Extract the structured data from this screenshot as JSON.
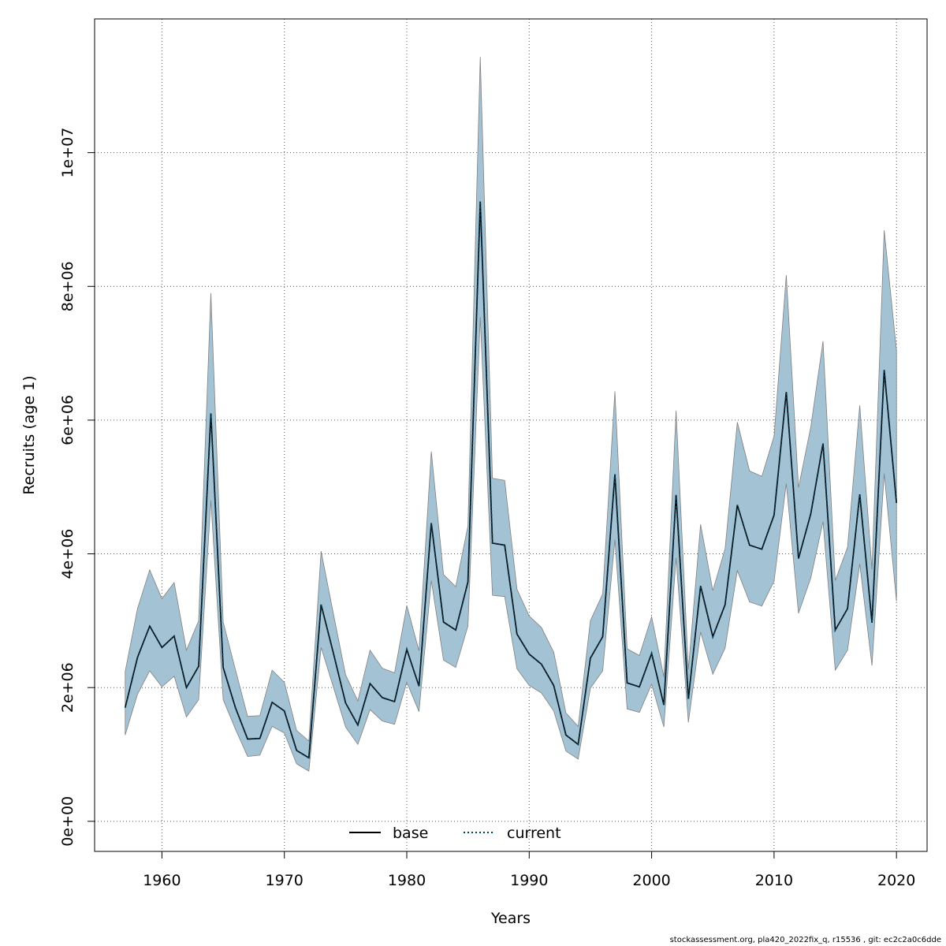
{
  "chart_data": {
    "type": "line",
    "title": "",
    "xlabel": "Years",
    "ylabel": "Recruits (age 1)",
    "xlim": [
      1954.5,
      2022.5
    ],
    "ylim": [
      -450000,
      12000000
    ],
    "x_ticks": [
      1960,
      1970,
      1980,
      1990,
      2000,
      2010,
      2020
    ],
    "x_tick_labels": [
      "1960",
      "1970",
      "1980",
      "1990",
      "2000",
      "2010",
      "2020"
    ],
    "y_ticks": [
      0,
      2000000,
      4000000,
      6000000,
      8000000,
      10000000
    ],
    "y_tick_labels": [
      "0e+00",
      "2e+06",
      "4e+06",
      "6e+06",
      "8e+06",
      "1e+07"
    ],
    "grid": true,
    "legend_position": "bottom",
    "legend": [
      {
        "label": "base",
        "style": "solid",
        "color": "#000000"
      },
      {
        "label": "current",
        "style": "dotted",
        "color": "#00405a"
      }
    ],
    "x": [
      1957,
      1958,
      1959,
      1960,
      1961,
      1962,
      1963,
      1964,
      1965,
      1966,
      1967,
      1968,
      1969,
      1970,
      1971,
      1972,
      1973,
      1974,
      1975,
      1976,
      1977,
      1978,
      1979,
      1980,
      1981,
      1982,
      1983,
      1984,
      1985,
      1986,
      1987,
      1988,
      1989,
      1990,
      1991,
      1992,
      1993,
      1994,
      1995,
      1996,
      1997,
      1998,
      1999,
      2000,
      2001,
      2002,
      2003,
      2004,
      2005,
      2006,
      2007,
      2008,
      2009,
      2010,
      2011,
      2012,
      2013,
      2014,
      2015,
      2016,
      2017,
      2018,
      2019,
      2020
    ],
    "series": [
      {
        "name": "base",
        "values": [
          1700000,
          2450000,
          2920000,
          2600000,
          2770000,
          2000000,
          2320000,
          6100000,
          2300000,
          1700000,
          1230000,
          1240000,
          1780000,
          1650000,
          1060000,
          950000,
          3240000,
          2520000,
          1770000,
          1440000,
          2060000,
          1850000,
          1790000,
          2570000,
          2020000,
          4460000,
          2980000,
          2860000,
          3580000,
          9270000,
          4160000,
          4130000,
          2800000,
          2500000,
          2350000,
          2030000,
          1290000,
          1150000,
          2440000,
          2760000,
          5190000,
          2070000,
          2010000,
          2510000,
          1740000,
          4880000,
          1830000,
          3520000,
          2760000,
          3240000,
          4730000,
          4130000,
          4070000,
          4580000,
          6420000,
          3930000,
          4600000,
          5650000,
          2860000,
          3180000,
          4890000,
          2970000,
          6750000,
          4760000
        ]
      },
      {
        "name": "current",
        "values": [
          1700000,
          2450000,
          2920000,
          2600000,
          2770000,
          2000000,
          2320000,
          6100000,
          2300000,
          1700000,
          1230000,
          1240000,
          1780000,
          1650000,
          1060000,
          950000,
          3240000,
          2520000,
          1770000,
          1440000,
          2060000,
          1850000,
          1790000,
          2570000,
          2020000,
          4460000,
          2980000,
          2860000,
          3580000,
          9270000,
          4160000,
          4130000,
          2800000,
          2500000,
          2350000,
          2030000,
          1290000,
          1150000,
          2440000,
          2760000,
          5190000,
          2070000,
          2010000,
          2510000,
          1740000,
          4880000,
          1830000,
          3520000,
          2760000,
          3240000,
          4730000,
          4130000,
          4070000,
          4580000,
          6420000,
          3930000,
          4600000,
          5650000,
          2860000,
          3180000,
          4890000,
          2970000,
          6750000,
          4760000
        ]
      }
    ],
    "band": {
      "upper": [
        2240000,
        3180000,
        3760000,
        3330000,
        3570000,
        2560000,
        3000000,
        7900000,
        2980000,
        2270000,
        1570000,
        1580000,
        2260000,
        2080000,
        1360000,
        1200000,
        4040000,
        3110000,
        2190000,
        1800000,
        2560000,
        2290000,
        2220000,
        3230000,
        2550000,
        5530000,
        3690000,
        3510000,
        4420000,
        11430000,
        5130000,
        5100000,
        3470000,
        3070000,
        2900000,
        2530000,
        1620000,
        1420000,
        3000000,
        3400000,
        6430000,
        2580000,
        2480000,
        3060000,
        2160000,
        6140000,
        2270000,
        4440000,
        3450000,
        4080000,
        5970000,
        5240000,
        5160000,
        5760000,
        8170000,
        4990000,
        5900000,
        7180000,
        3600000,
        4100000,
        6220000,
        3770000,
        8840000,
        7040000
      ],
      "lower": [
        1290000,
        1900000,
        2250000,
        2010000,
        2170000,
        1560000,
        1820000,
        4800000,
        1820000,
        1380000,
        970000,
        990000,
        1420000,
        1320000,
        860000,
        750000,
        2600000,
        2010000,
        1410000,
        1150000,
        1670000,
        1500000,
        1450000,
        2080000,
        1640000,
        3600000,
        2410000,
        2300000,
        2920000,
        7540000,
        3380000,
        3360000,
        2280000,
        2030000,
        1920000,
        1650000,
        1050000,
        930000,
        1990000,
        2250000,
        4210000,
        1680000,
        1630000,
        2050000,
        1410000,
        3940000,
        1480000,
        2830000,
        2200000,
        2590000,
        3750000,
        3280000,
        3220000,
        3590000,
        5050000,
        3110000,
        3640000,
        4480000,
        2260000,
        2560000,
        3850000,
        2330000,
        5200000,
        3290000
      ]
    },
    "colors": {
      "band_fill": "#a3c3d4",
      "band_stroke": "#808080",
      "base_line": "#000000",
      "current_line": "#00405a",
      "grid": "#555555",
      "axes": "#000000"
    }
  },
  "footer": {
    "credit": "stockassessment.org, pla420_2022fix_q, r15536 , git: ec2c2a0c6dde"
  }
}
